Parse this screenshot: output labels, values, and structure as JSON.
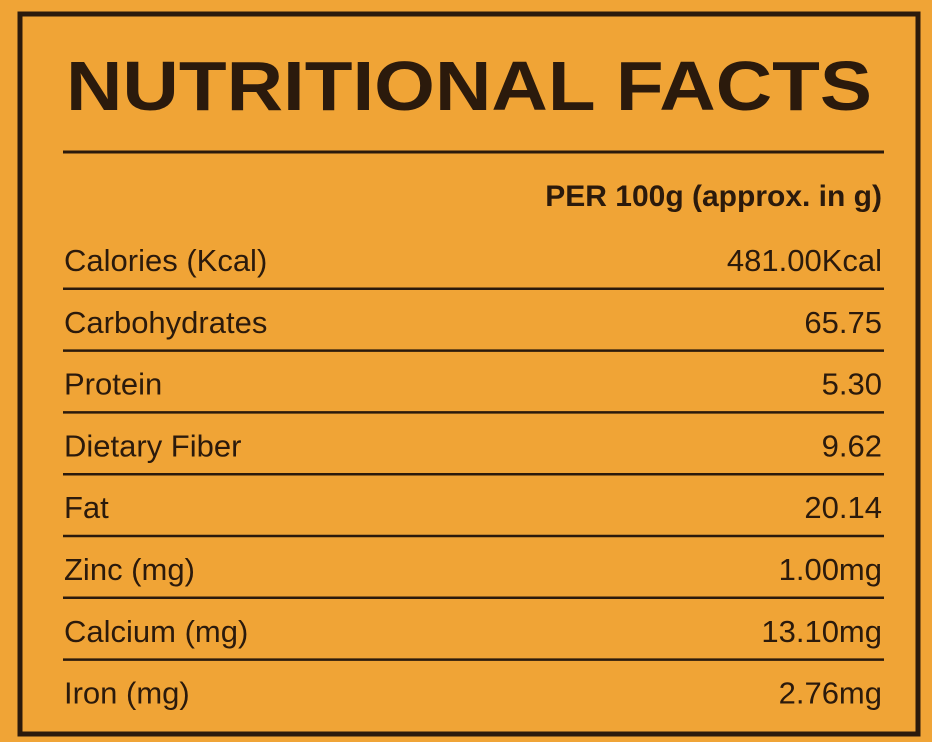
{
  "header": {
    "title": "NUTRITIONAL FACTS",
    "column_heading": "PER 100g (approx. in g)"
  },
  "table": {
    "rows": [
      [
        "Calories (Kcal)",
        "481.00Kcal"
      ],
      [
        "Carbohydrates",
        "65.75"
      ],
      [
        "Protein",
        "5.30"
      ],
      [
        "Dietary Fiber",
        "9.62"
      ],
      [
        "Fat",
        "20.14"
      ],
      [
        "Zinc (mg)",
        "1.00mg"
      ],
      [
        "Calcium (mg)",
        "13.10mg"
      ],
      [
        "Iron (mg)",
        "2.76mg"
      ]
    ]
  }
}
